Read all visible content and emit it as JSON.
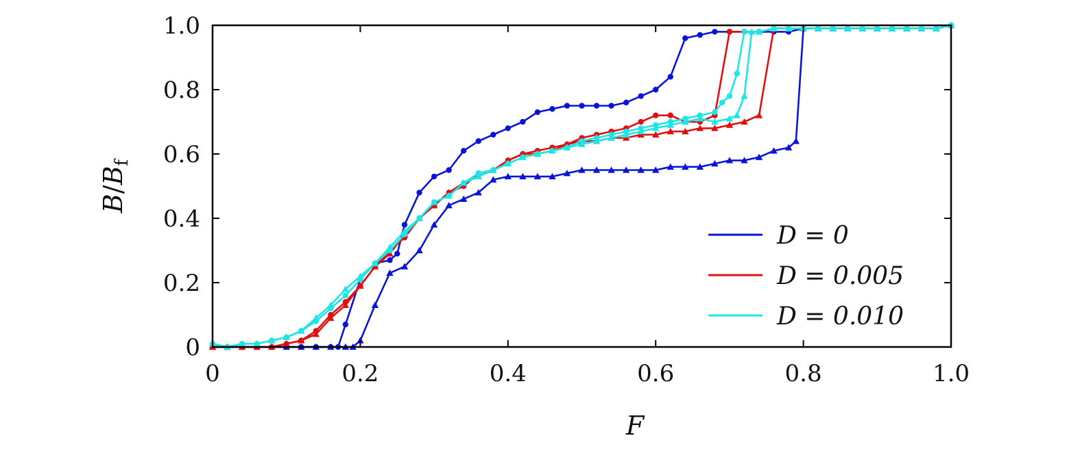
{
  "chart_data": {
    "type": "line",
    "title": "",
    "xlabel": "F",
    "ylabel": "B/B_f",
    "ylabel_parts": {
      "main": "B",
      "sep": "/",
      "base": "B",
      "sub": "f"
    },
    "xlim": [
      0,
      1.0
    ],
    "ylim": [
      0,
      1.0
    ],
    "xticks": [
      0,
      0.2,
      0.4,
      0.6,
      0.8,
      1.0
    ],
    "xtick_labels": [
      "0",
      "0.2",
      "0.4",
      "0.6",
      "0.8",
      "1.0"
    ],
    "yticks": [
      0,
      0.2,
      0.4,
      0.6,
      0.8,
      1.0
    ],
    "ytick_labels": [
      "0",
      "0.2",
      "0.4",
      "0.6",
      "0.8",
      "1.0"
    ],
    "grid": false,
    "legend_position": "lower-right",
    "series": [
      {
        "name": "D = 0",
        "color": "#0a14d8",
        "marker": "circle",
        "branch": "increasing-F",
        "x": [
          0,
          0.02,
          0.04,
          0.06,
          0.08,
          0.1,
          0.12,
          0.14,
          0.16,
          0.17,
          0.18,
          0.2,
          0.22,
          0.24,
          0.25,
          0.26,
          0.28,
          0.3,
          0.32,
          0.34,
          0.36,
          0.38,
          0.4,
          0.42,
          0.44,
          0.46,
          0.48,
          0.5,
          0.52,
          0.54,
          0.56,
          0.58,
          0.6,
          0.62,
          0.64,
          0.66,
          0.68,
          0.7,
          0.72,
          0.74,
          0.76,
          0.78,
          0.8,
          0.82,
          0.84,
          0.86,
          0.88,
          0.9,
          0.92,
          0.94,
          0.96,
          0.98,
          1.0
        ],
        "y": [
          0,
          0,
          0,
          0,
          0,
          0,
          0,
          0,
          0,
          0,
          0.07,
          0.21,
          0.26,
          0.27,
          0.29,
          0.38,
          0.48,
          0.53,
          0.55,
          0.61,
          0.64,
          0.66,
          0.68,
          0.7,
          0.73,
          0.74,
          0.75,
          0.75,
          0.75,
          0.75,
          0.76,
          0.78,
          0.8,
          0.84,
          0.96,
          0.97,
          0.98,
          0.98,
          0.98,
          0.98,
          0.98,
          0.98,
          0.99,
          0.99,
          0.99,
          0.99,
          0.99,
          0.99,
          0.99,
          0.99,
          0.99,
          0.99,
          1.0
        ]
      },
      {
        "name": "",
        "color": "#0a14d8",
        "marker": "triangle",
        "branch": "decreasing-F",
        "x": [
          0,
          0.02,
          0.04,
          0.06,
          0.08,
          0.1,
          0.12,
          0.14,
          0.16,
          0.18,
          0.19,
          0.2,
          0.22,
          0.24,
          0.26,
          0.28,
          0.3,
          0.32,
          0.34,
          0.36,
          0.38,
          0.4,
          0.42,
          0.44,
          0.46,
          0.48,
          0.5,
          0.52,
          0.54,
          0.56,
          0.58,
          0.6,
          0.62,
          0.64,
          0.66,
          0.68,
          0.7,
          0.72,
          0.74,
          0.76,
          0.78,
          0.79,
          0.8,
          0.82,
          0.84,
          0.86,
          0.88,
          0.9,
          0.92,
          0.94,
          0.96,
          0.98,
          1.0
        ],
        "y": [
          0,
          0,
          0,
          0,
          0,
          0,
          0,
          0,
          0,
          0,
          0,
          0.02,
          0.13,
          0.23,
          0.25,
          0.3,
          0.38,
          0.44,
          0.46,
          0.48,
          0.52,
          0.53,
          0.53,
          0.53,
          0.53,
          0.54,
          0.55,
          0.55,
          0.55,
          0.55,
          0.55,
          0.55,
          0.56,
          0.56,
          0.56,
          0.57,
          0.58,
          0.58,
          0.59,
          0.61,
          0.62,
          0.64,
          0.99,
          0.99,
          0.99,
          0.99,
          0.99,
          0.99,
          0.99,
          0.99,
          0.99,
          0.99,
          1.0
        ]
      },
      {
        "name": "D = 0.005",
        "color": "#e01010",
        "marker": "circle",
        "branch": "increasing-F",
        "x": [
          0,
          0.02,
          0.04,
          0.06,
          0.08,
          0.1,
          0.12,
          0.14,
          0.16,
          0.18,
          0.2,
          0.22,
          0.24,
          0.26,
          0.28,
          0.3,
          0.32,
          0.34,
          0.36,
          0.38,
          0.4,
          0.42,
          0.44,
          0.46,
          0.48,
          0.5,
          0.52,
          0.54,
          0.56,
          0.58,
          0.6,
          0.62,
          0.64,
          0.66,
          0.68,
          0.7,
          0.72,
          0.74,
          0.76,
          0.78,
          0.8,
          0.82,
          0.84,
          0.86,
          0.88,
          0.9,
          0.92,
          0.94,
          0.96,
          0.98,
          1.0
        ],
        "y": [
          0,
          0,
          0,
          0,
          0,
          0.01,
          0.02,
          0.05,
          0.1,
          0.14,
          0.19,
          0.25,
          0.3,
          0.34,
          0.4,
          0.44,
          0.48,
          0.5,
          0.54,
          0.55,
          0.58,
          0.6,
          0.61,
          0.62,
          0.63,
          0.65,
          0.66,
          0.67,
          0.68,
          0.7,
          0.72,
          0.72,
          0.7,
          0.7,
          0.72,
          0.98,
          0.98,
          0.98,
          0.99,
          0.99,
          0.99,
          0.99,
          0.99,
          0.99,
          0.99,
          0.99,
          0.99,
          0.99,
          0.99,
          0.99,
          1.0
        ]
      },
      {
        "name": "",
        "color": "#e01010",
        "marker": "triangle",
        "branch": "decreasing-F",
        "x": [
          0,
          0.02,
          0.04,
          0.06,
          0.08,
          0.1,
          0.12,
          0.14,
          0.16,
          0.18,
          0.2,
          0.22,
          0.24,
          0.26,
          0.28,
          0.3,
          0.32,
          0.34,
          0.36,
          0.38,
          0.4,
          0.42,
          0.44,
          0.46,
          0.48,
          0.5,
          0.52,
          0.54,
          0.56,
          0.58,
          0.6,
          0.62,
          0.64,
          0.66,
          0.68,
          0.7,
          0.72,
          0.74,
          0.76,
          0.78,
          0.8,
          0.82,
          0.84,
          0.86,
          0.88,
          0.9,
          0.92,
          0.94,
          0.96,
          0.98,
          1.0
        ],
        "y": [
          0,
          0,
          0,
          0,
          0,
          0.01,
          0.02,
          0.04,
          0.09,
          0.13,
          0.19,
          0.25,
          0.29,
          0.35,
          0.4,
          0.44,
          0.48,
          0.51,
          0.53,
          0.55,
          0.58,
          0.6,
          0.6,
          0.61,
          0.63,
          0.64,
          0.64,
          0.65,
          0.65,
          0.66,
          0.66,
          0.67,
          0.67,
          0.68,
          0.68,
          0.69,
          0.7,
          0.72,
          0.99,
          0.99,
          0.99,
          0.99,
          0.99,
          0.99,
          0.99,
          0.99,
          0.99,
          0.99,
          0.99,
          0.99,
          1.0
        ]
      },
      {
        "name": "D = 0.010",
        "color": "#1ee6e6",
        "marker": "circle",
        "branch": "increasing-F",
        "x": [
          0,
          0.02,
          0.04,
          0.06,
          0.08,
          0.1,
          0.12,
          0.14,
          0.16,
          0.18,
          0.2,
          0.22,
          0.24,
          0.26,
          0.28,
          0.3,
          0.32,
          0.34,
          0.36,
          0.38,
          0.4,
          0.42,
          0.44,
          0.46,
          0.48,
          0.5,
          0.52,
          0.54,
          0.56,
          0.58,
          0.6,
          0.62,
          0.64,
          0.66,
          0.68,
          0.69,
          0.7,
          0.71,
          0.72,
          0.74,
          0.76,
          0.78,
          0.8,
          0.82,
          0.84,
          0.86,
          0.88,
          0.9,
          0.92,
          0.94,
          0.96,
          0.98,
          1.0
        ],
        "y": [
          0.01,
          0,
          0.01,
          0.01,
          0.02,
          0.03,
          0.05,
          0.08,
          0.12,
          0.16,
          0.21,
          0.26,
          0.3,
          0.35,
          0.4,
          0.45,
          0.47,
          0.51,
          0.54,
          0.55,
          0.57,
          0.59,
          0.6,
          0.61,
          0.62,
          0.64,
          0.65,
          0.66,
          0.67,
          0.68,
          0.69,
          0.7,
          0.71,
          0.72,
          0.73,
          0.76,
          0.78,
          0.85,
          0.98,
          0.98,
          0.99,
          0.99,
          0.99,
          0.99,
          0.99,
          0.99,
          0.99,
          0.99,
          0.99,
          0.99,
          0.99,
          0.99,
          1.0
        ]
      },
      {
        "name": "",
        "color": "#1ee6e6",
        "marker": "triangle",
        "branch": "decreasing-F",
        "x": [
          0,
          0.02,
          0.04,
          0.06,
          0.08,
          0.1,
          0.12,
          0.14,
          0.16,
          0.18,
          0.2,
          0.22,
          0.24,
          0.26,
          0.28,
          0.3,
          0.32,
          0.34,
          0.36,
          0.38,
          0.4,
          0.42,
          0.44,
          0.46,
          0.48,
          0.5,
          0.52,
          0.54,
          0.56,
          0.58,
          0.6,
          0.62,
          0.64,
          0.66,
          0.68,
          0.7,
          0.71,
          0.72,
          0.73,
          0.74,
          0.76,
          0.78,
          0.8,
          0.82,
          0.84,
          0.86,
          0.88,
          0.9,
          0.92,
          0.94,
          0.96,
          0.98,
          1.0
        ],
        "y": [
          0.01,
          0,
          0.01,
          0.01,
          0.02,
          0.03,
          0.05,
          0.09,
          0.13,
          0.18,
          0.22,
          0.26,
          0.31,
          0.36,
          0.4,
          0.45,
          0.47,
          0.51,
          0.53,
          0.55,
          0.57,
          0.59,
          0.6,
          0.61,
          0.62,
          0.63,
          0.64,
          0.65,
          0.66,
          0.67,
          0.68,
          0.69,
          0.7,
          0.71,
          0.7,
          0.71,
          0.72,
          0.78,
          0.98,
          0.98,
          0.99,
          0.99,
          0.99,
          0.99,
          0.99,
          0.99,
          0.99,
          0.99,
          0.99,
          0.99,
          0.99,
          0.99,
          1.0
        ]
      }
    ],
    "legend": [
      {
        "label": "D = 0",
        "color": "#0a14d8"
      },
      {
        "label": "D = 0.005",
        "color": "#e01010"
      },
      {
        "label": "D = 0.010",
        "color": "#1ee6e6"
      }
    ]
  }
}
